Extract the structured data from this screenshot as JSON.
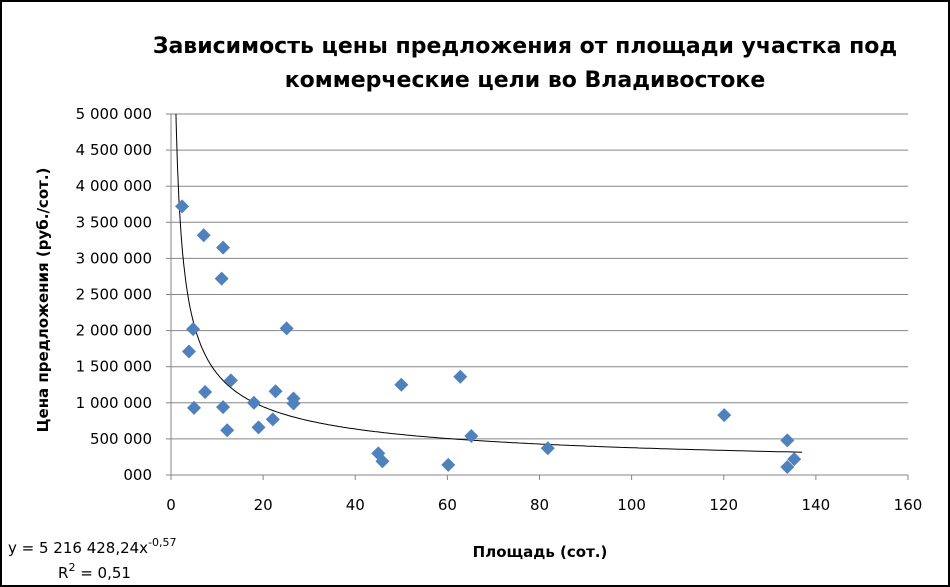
{
  "chart_data": {
    "type": "scatter",
    "title_lines": [
      "Зависимость цены предложения от площади участка под",
      "коммерческие цели во Владивостоке"
    ],
    "xlabel": "Площадь (сот.)",
    "ylabel": "Цена предложения (руб./сот.)",
    "xlim": [
      0,
      160
    ],
    "ylim": [
      0,
      5000000
    ],
    "x_ticks": [
      "0",
      "20",
      "40",
      "60",
      "80",
      "100",
      "120",
      "140",
      "160"
    ],
    "y_ticks": [
      "000",
      "500 000",
      "1 000 000",
      "1 500 000",
      "2 000 000",
      "2 500 000",
      "3 000 000",
      "3 500 000",
      "4 000 000",
      "4 500 000",
      "5 000 000"
    ],
    "grid": "horizontal",
    "marker_color": "#4F81BD",
    "points": [
      [
        2.4,
        3720000
      ],
      [
        7.1,
        3320000
      ],
      [
        11.3,
        3150000
      ],
      [
        11.0,
        2720000
      ],
      [
        4.8,
        2020000
      ],
      [
        3.9,
        1710000
      ],
      [
        25.1,
        2030000
      ],
      [
        13.0,
        1310000
      ],
      [
        7.4,
        1150000
      ],
      [
        5.0,
        930000
      ],
      [
        11.3,
        940000
      ],
      [
        12.2,
        620000
      ],
      [
        18.0,
        1000000
      ],
      [
        19.0,
        660000
      ],
      [
        22.7,
        1160000
      ],
      [
        22.1,
        770000
      ],
      [
        26.6,
        1060000
      ],
      [
        26.6,
        990000
      ],
      [
        45.0,
        300000
      ],
      [
        45.9,
        190000
      ],
      [
        50.0,
        1250000
      ],
      [
        60.2,
        140000
      ],
      [
        62.8,
        1360000
      ],
      [
        65.2,
        540000
      ],
      [
        81.8,
        370000
      ],
      [
        120.1,
        830000
      ],
      [
        133.8,
        480000
      ],
      [
        133.8,
        110000
      ],
      [
        135.3,
        220000
      ]
    ],
    "trendline": {
      "type": "power",
      "a": 5216428.24,
      "b": -0.57,
      "equation": "y = 5 216 428,24x",
      "exponent": "-0,57",
      "r2_label": "R",
      "r2_value": " = 0,51"
    }
  }
}
